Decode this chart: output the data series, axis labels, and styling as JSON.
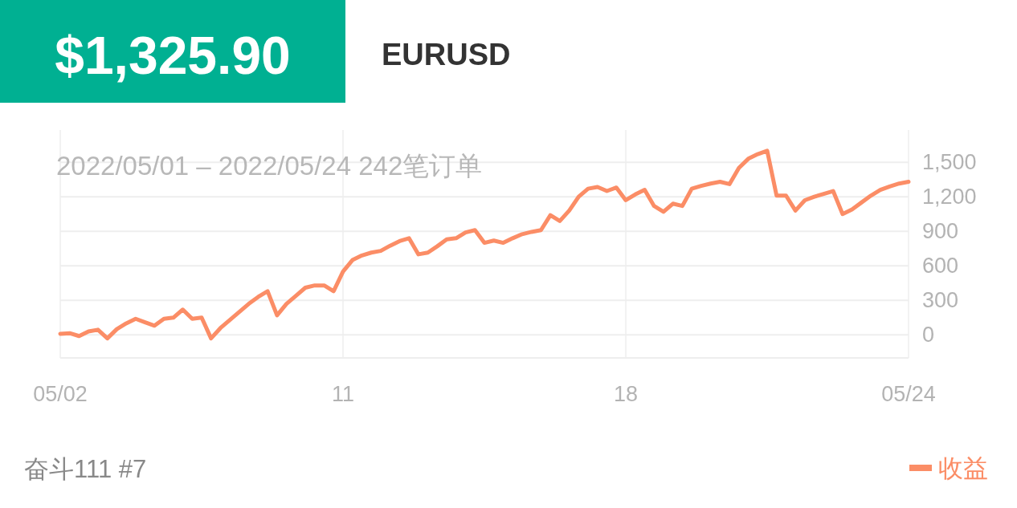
{
  "chart_data": {
    "type": "line",
    "title": "$1,325.90",
    "subtitle": "EURUSD",
    "annotations": [
      "2022/05/01 – 2022/05/24  242笔订单",
      "奋斗111 #7"
    ],
    "categories": [
      "05/02",
      null,
      null,
      null,
      null,
      null,
      null,
      null,
      null,
      null,
      null,
      null,
      null,
      null,
      null,
      null,
      null,
      null,
      null,
      null,
      null,
      null,
      null,
      null,
      null,
      null,
      null,
      null,
      null,
      null,
      "11",
      null,
      null,
      null,
      null,
      null,
      null,
      null,
      null,
      null,
      null,
      null,
      null,
      null,
      null,
      null,
      null,
      null,
      null,
      null,
      null,
      null,
      null,
      null,
      null,
      null,
      null,
      null,
      null,
      null,
      "18",
      null,
      null,
      null,
      null,
      null,
      null,
      null,
      null,
      null,
      null,
      null,
      null,
      null,
      null,
      null,
      null,
      null,
      null,
      null,
      null,
      null,
      null,
      null,
      null,
      null,
      null,
      null,
      null,
      null,
      "05/24"
    ],
    "ylim": [
      -200,
      1780
    ],
    "yticks": [
      0,
      300,
      600,
      900,
      {
        "value": 1200,
        "label": "1,200"
      },
      {
        "value": 1500,
        "label": "1,500"
      }
    ],
    "grid": true,
    "legend": "bottom right",
    "marker": "none",
    "line_style": "solid",
    "series": [
      {
        "name": "收益",
        "color": "#fb8d66",
        "values": [
          10,
          15,
          -10,
          30,
          45,
          -30,
          50,
          100,
          140,
          110,
          80,
          140,
          150,
          220,
          140,
          150,
          -30,
          60,
          130,
          200,
          270,
          330,
          380,
          170,
          270,
          340,
          410,
          430,
          430,
          380,
          550,
          650,
          690,
          715,
          730,
          775,
          815,
          840,
          700,
          715,
          770,
          830,
          840,
          890,
          910,
          800,
          820,
          800,
          840,
          875,
          895,
          910,
          1040,
          990,
          1080,
          1200,
          1270,
          1285,
          1250,
          1280,
          1170,
          1220,
          1260,
          1120,
          1070,
          1140,
          1120,
          1270,
          1295,
          1315,
          1330,
          1310,
          1450,
          1530,
          1570,
          1600,
          1210,
          1210,
          1080,
          1170,
          1200,
          1225,
          1250,
          1050,
          1090,
          1150,
          1210,
          1260,
          1290,
          1315,
          1330
        ]
      }
    ]
  }
}
